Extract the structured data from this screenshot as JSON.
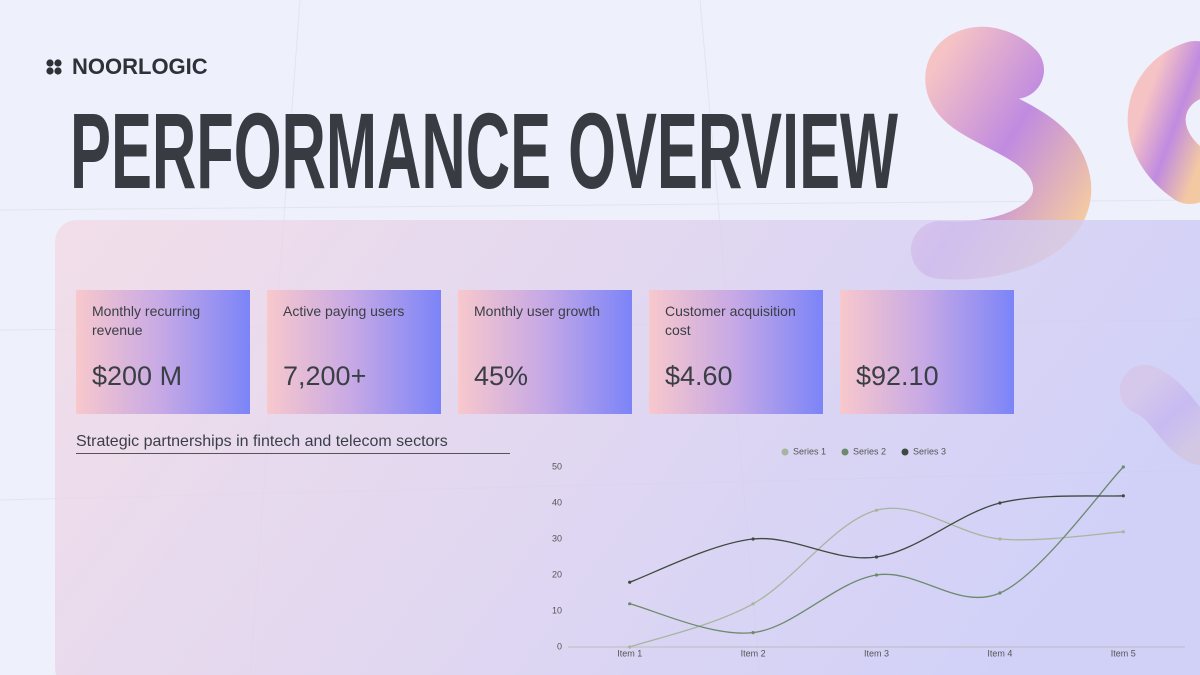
{
  "header": {
    "brand": "NOORLOGIC",
    "title": "PERFORMANCE OVERVIEW"
  },
  "kpis": [
    {
      "label": "Monthly recurring revenue",
      "value": "$200 M"
    },
    {
      "label": "Active paying users",
      "value": "7,200+"
    },
    {
      "label": "Monthly user growth",
      "value": "45%"
    },
    {
      "label": "Customer acquisition cost",
      "value": "$4.60"
    },
    {
      "value": "$92.10"
    }
  ],
  "note": "Strategic partnerships in fintech and telecom sectors",
  "chart_data": {
    "type": "line",
    "categories": [
      "Item 1",
      "Item 2",
      "Item 3",
      "Item 4",
      "Item 5"
    ],
    "series": [
      {
        "name": "Series 1",
        "color": "#a7b59e",
        "values": [
          0,
          12,
          38,
          30,
          32
        ]
      },
      {
        "name": "Series 2",
        "color": "#6d8a6c",
        "values": [
          12,
          4,
          20,
          15,
          50
        ]
      },
      {
        "name": "Series 3",
        "color": "#3e4a40",
        "values": [
          18,
          30,
          25,
          40,
          42
        ]
      }
    ],
    "ylim": [
      0,
      50
    ],
    "yticks": [
      0,
      10,
      20,
      30,
      40,
      50
    ],
    "smooth": true
  }
}
